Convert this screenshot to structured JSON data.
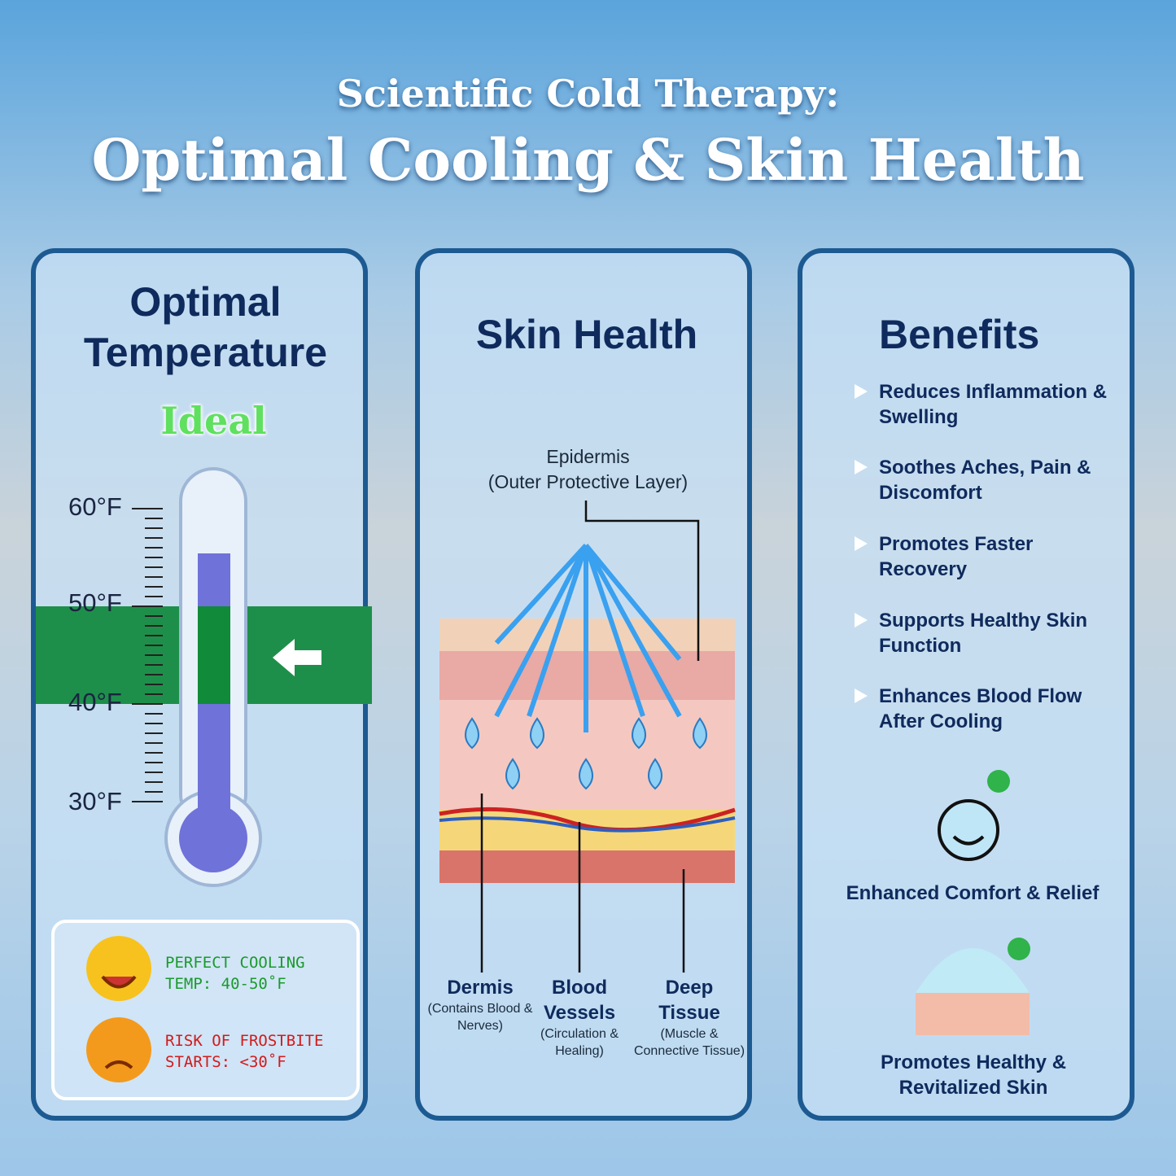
{
  "header": {
    "kicker": "Scientific Cold Therapy:",
    "title": "Optimal Cooling & Skin Health"
  },
  "temperature": {
    "title": "Optimal Temperature",
    "badge": "Ideal",
    "scale": [
      "60°F",
      "50°F",
      "40°F",
      "30°F"
    ],
    "legend": [
      "PERFECT COOLING TEMP: 40-50˚F",
      "RISK OF FROSTBITE STARTS: <30˚F"
    ]
  },
  "skin": {
    "title": "Skin Health",
    "callout": {
      "name": "Epidermis",
      "note": "(Outer Protective Layer)"
    },
    "layers": [
      {
        "name": "Dermis",
        "note": "(Contains Blood & Nerves)"
      },
      {
        "name": "Blood Vessels",
        "note": "(Circulation & Healing)"
      },
      {
        "name": "Deep Tissue",
        "note": "(Muscle & Connective Tissue)"
      }
    ]
  },
  "benefits": {
    "title": "Benefits",
    "items": [
      "Reduces Inflammation & Swelling",
      "Soothes Aches, Pain & Discomfort",
      "Promotes Faster Recovery",
      "Supports Healthy Skin Function",
      "Enhances Blood Flow After Cooling"
    ],
    "features": [
      "Enhanced Comfort & Relief",
      "Promotes Healthy & Revitalized Skin"
    ]
  }
}
